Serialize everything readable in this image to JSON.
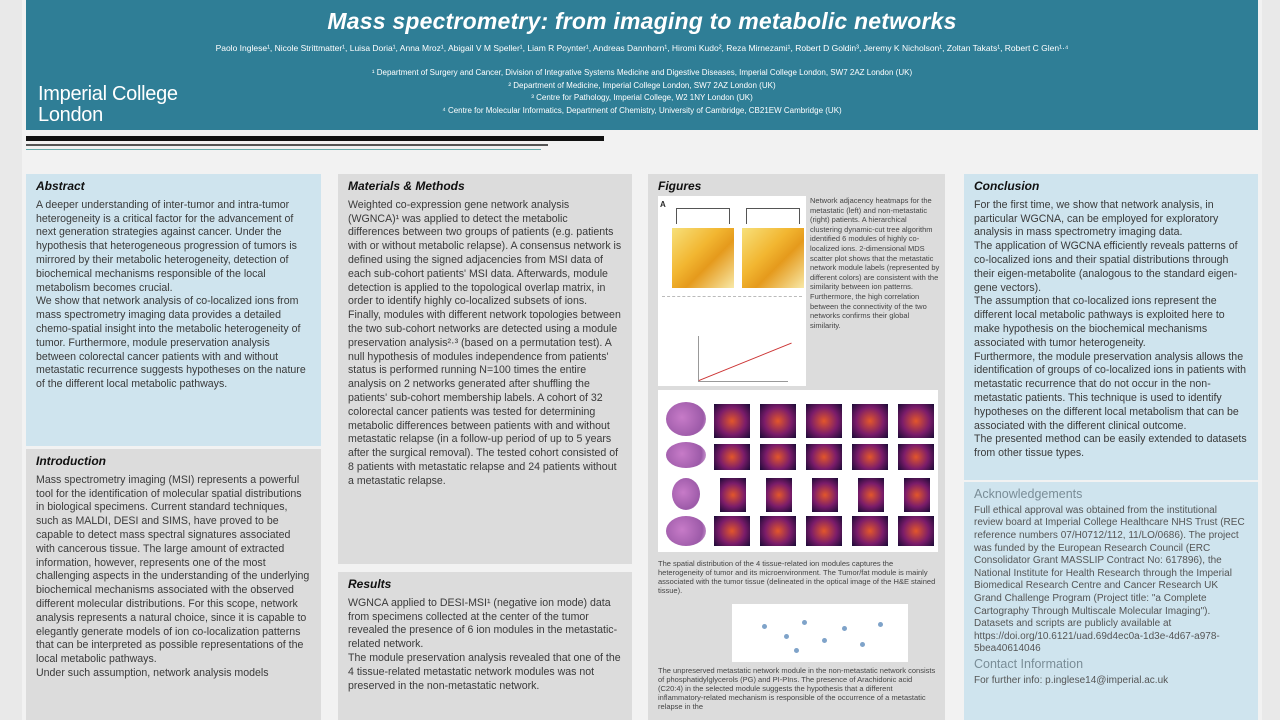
{
  "header": {
    "title": "Mass spectrometry: from imaging to metabolic networks",
    "authors": "Paolo Inglese¹, Nicole Strittmatter¹, Luisa Doria¹, Anna Mroz¹, Abigail V M Speller¹, Liam R Poynter¹, Andreas Dannhorn¹, Hiromi Kudo², Reza Mirnezami¹, Robert D Goldin³, Jeremy K Nicholson¹, Zoltan Takats¹, Robert C Glen¹·⁴",
    "affiliations": [
      "¹ Department of Surgery and Cancer, Division of Integrative Systems Medicine and Digestive Diseases, Imperial College London, SW7 2AZ London (UK)",
      "² Department of Medicine, Imperial College London, SW7 2AZ London (UK)",
      "³ Centre for Pathology, Imperial College, W2 1NY London (UK)",
      "⁴ Centre for Molecular Informatics, Department of Chemistry, University of Cambridge, CB21EW Cambridge (UK)"
    ],
    "logo_line1": "Imperial College",
    "logo_line2": "London",
    "colors": {
      "header_bg": "#2f7e96",
      "panel_blue": "#cfe4ee",
      "panel_grey": "#dcdcdc"
    }
  },
  "abstract": {
    "heading": "Abstract",
    "p1": "A deeper understanding of inter-tumor and intra-tumor heterogeneity is a critical factor for the advancement of next generation strategies against cancer. Under the hypothesis that heterogeneous progression of tumors is mirrored by their metabolic heterogeneity, detection of biochemical mechanisms responsible of the local metabolism becomes crucial.",
    "p2": "We show that network analysis of co-localized ions from mass spectrometry imaging data provides a detailed chemo-spatial insight into the metabolic heterogeneity of tumor. Furthermore, module preservation analysis between colorectal cancer patients with and without metastatic recurrence suggests hypotheses on the nature of the different local metabolic pathways."
  },
  "introduction": {
    "heading": "Introduction",
    "p1": "Mass spectrometry imaging (MSI) represents a powerful tool for the identification of molecular spatial distributions in biological specimens. Current standard techniques, such as MALDI, DESI and SIMS, have proved to be capable to detect mass spectral signatures associated with cancerous tissue. The large amount of extracted information, however, represents one of the most challenging aspects in the understanding of the underlying biochemical mechanisms associated with the observed different molecular distributions. For this scope, network analysis represents a natural choice, since it is capable to elegantly generate models of ion co-localization patterns that can be interpreted as possible representations of the local metabolic pathways.",
    "p2": "Under such assumption, network analysis models"
  },
  "methods": {
    "heading": "Materials & Methods",
    "p1": "Weighted co-expression gene network analysis (WGNCA)¹ was applied to detect the metabolic differences between two groups of patients (e.g. patients with or without metabolic relapse). A consensus network is defined using the signed adjacencies from MSI data of each sub-cohort patients' MSI data. Afterwards, module detection is applied to the topological overlap matrix, in order to identify highly co-localized subsets of ions. Finally, modules with different network topologies between the two sub-cohort networks are detected using a module preservation analysis²·³ (based on a permutation test). A null hypothesis of modules independence from patients' status is performed running N=100 times the entire analysis on 2 networks generated after shuffling the patients' sub-cohort membership labels. A cohort of 32 colorectal cancer patients was tested for determining metabolic differences between patients with and without metastatic relapse (in a follow-up period of up to 5 years after the surgical removal). The tested cohort consisted of 8 patients with metastatic relapse and 24 patients without a metastatic relapse."
  },
  "results": {
    "heading": "Results",
    "p1": "WGNCA applied to DESI-MSI¹ (negative ion mode) data from specimens collected at the center of the tumor revealed the presence of 6 ion modules in the metastatic-related network.",
    "p2": "The module preservation analysis revealed that one of the 4 tissue-related metastatic network modules was not preserved in the non-metastatic network."
  },
  "figures": {
    "heading": "Figures",
    "panel_a_label": "A",
    "panel_a_caption": "Network adjacency heatmaps for the metastatic (left) and non-metastatic (right) patients. A hierarchical clustering dynamic-cut tree algorithm identified 6 modules of highly co-localized ions. 2-dimensional MDS scatter plot shows that the metastatic network module labels (represented by different colors) are consistent with the similarity between ion patterns. Furthermore, the high correlation between the connectivity of the two networks confirms their global similarity.",
    "panel_b_caption": "The spatial distribution of the 4 tissue-related ion modules captures the heterogeneity of tumor and its microenvironment. The Tumor/fat module is mainly associated with the tumor tissue (delineated in the optical image of the H&E stained tissue).",
    "panel_c_caption": "The unpreserved metastatic network module in the non-metastatic network consists of phosphatidylglycerols (PG) and PI-PIns. The presence of Arachidonic acid (C20:4) in the selected module suggests the hypothesis that a different inflammatory-related mechanism is responsible of the occurrence of a metastatic relapse in the"
  },
  "conclusion": {
    "heading": "Conclusion",
    "p1": "For the first time, we show that network analysis, in particular WGCNA, can be employed for exploratory analysis in mass spectrometry imaging data.",
    "p2": "The application of WGCNA efficiently reveals patterns of co-localized ions and their spatial distributions through their eigen-metabolite (analogous to the standard eigen-gene vectors).",
    "p3": "The assumption that co-localized ions represent the different local metabolic pathways is exploited here to make hypothesis on the biochemical mechanisms associated with tumor heterogeneity.",
    "p4": "Furthermore, the module preservation analysis allows the identification of groups of co-localized ions in patients with metastatic recurrence that do not occur in the non-metastatic patients. This technique is used to identify hypotheses on the different local metabolism that can be associated with the different clinical outcome.",
    "p5": "The presented method can be easily extended to datasets from other tissue types."
  },
  "acknowledgements": {
    "heading": "Acknowledgements",
    "p1": "Full ethical approval was obtained from the institutional review board at Imperial College Healthcare NHS Trust (REC reference numbers 07/H0712/112, 11/LO/0686). The project was funded by the European Research Council (ERC Consolidator Grant MASSLIP Contract No: 617896), the National Institute for Health Research through the Imperial Biomedical Research Centre and Cancer Research UK Grand Challenge Program (Project title: \"a Complete Cartography Through Multiscale Molecular Imaging\").",
    "p2": "Datasets and scripts are publicly available at https://doi.org/10.6121/uad.69d4ec0a-1d3e-4d67-a978-5bea40614046",
    "contact_heading": "Contact Information",
    "contact_text": "For further info: p.inglese14@imperial.ac.uk"
  }
}
